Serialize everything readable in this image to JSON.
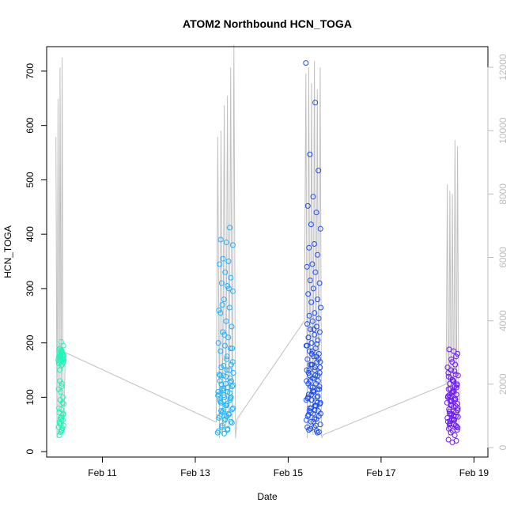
{
  "chart_data": {
    "type": "scatter",
    "title": "ATOM2 Northbound HCN_TOGA",
    "xlabel": "Date",
    "ylabel": "HCN_TOGA",
    "x_ticks": [
      "Feb 11",
      "Feb 13",
      "Feb 15",
      "Feb 17",
      "Feb 19"
    ],
    "x_tick_days": [
      11,
      13,
      15,
      17,
      19
    ],
    "xlim_days": [
      9.8,
      19.3
    ],
    "y_ticks": [
      0,
      100,
      200,
      300,
      400,
      500,
      600,
      700
    ],
    "ylim": [
      -10,
      745
    ],
    "y2_ticks": [
      0,
      2000,
      4000,
      6000,
      8000,
      10000,
      12000
    ],
    "y2lim": [
      -300,
      12650
    ],
    "grid": false,
    "legend": "none",
    "colors": {
      "flight1": "#1ff5b6",
      "flight2": "#1ab3ff",
      "flight3": "#1d4df2",
      "flight4": "#6e19f2",
      "altitude": "#c0c0c0",
      "axis": "#000000",
      "axis2": "#bdbdbd"
    },
    "series": [
      {
        "flight": "flight1",
        "x_range_days": [
          10.05,
          10.18
        ],
        "values": [
          168,
          172,
          175,
          178,
          180,
          165,
          160,
          170,
          176,
          183,
          179,
          171,
          166,
          174,
          185,
          190,
          195,
          202,
          188,
          181,
          177,
          169,
          158,
          150,
          173,
          178,
          162,
          181,
          176,
          170,
          65,
          72,
          58,
          50,
          45,
          40,
          55,
          68,
          78,
          80,
          90,
          62,
          48,
          38,
          30,
          100,
          110,
          115,
          125,
          95,
          70,
          60,
          52,
          43,
          36,
          88,
          120,
          130,
          164,
          186
        ]
      },
      {
        "flight": "flight2",
        "x_range_days": [
          13.48,
          13.85
        ],
        "values": [
          35,
          40,
          45,
          55,
          60,
          65,
          70,
          75,
          80,
          85,
          90,
          95,
          100,
          105,
          110,
          115,
          120,
          125,
          130,
          135,
          140,
          145,
          150,
          155,
          160,
          58,
          62,
          68,
          72,
          78,
          88,
          92,
          98,
          104,
          110,
          118,
          124,
          130,
          138,
          142,
          150,
          158,
          165,
          175,
          185,
          190,
          195,
          200,
          210,
          220,
          230,
          240,
          255,
          265,
          280,
          295,
          305,
          310,
          320,
          330,
          345,
          350,
          355,
          380,
          385,
          390,
          412,
          33,
          38,
          42,
          48,
          53,
          85,
          95,
          108,
          112,
          122,
          65,
          75,
          100,
          215,
          260,
          300,
          270,
          190,
          170,
          140,
          128,
          116,
          103
        ]
      },
      {
        "flight": "flight3",
        "x_range_days": [
          15.38,
          15.73
        ],
        "values": [
          715,
          642,
          547,
          517,
          469,
          452,
          440,
          418,
          410,
          382,
          375,
          362,
          345,
          340,
          330,
          315,
          310,
          300,
          290,
          280,
          275,
          265,
          255,
          250,
          245,
          240,
          235,
          230,
          225,
          220,
          215,
          210,
          205,
          200,
          195,
          190,
          185,
          180,
          175,
          170,
          165,
          160,
          155,
          150,
          145,
          140,
          135,
          130,
          125,
          120,
          115,
          110,
          105,
          100,
          95,
          90,
          85,
          80,
          75,
          70,
          65,
          60,
          55,
          50,
          45,
          40,
          35,
          160,
          150,
          140,
          130,
          120,
          110,
          100,
          90,
          80,
          70,
          60,
          150,
          170,
          185,
          195,
          175,
          160,
          145,
          135,
          125,
          115,
          105,
          95,
          85,
          75,
          65,
          55,
          45,
          38,
          95,
          88,
          76,
          68,
          102,
          118,
          58,
          48,
          42,
          36,
          225,
          210,
          198,
          180,
          165,
          155,
          140,
          130,
          112,
          98,
          84,
          72
        ]
      },
      {
        "flight": "flight4",
        "x_range_days": [
          18.42,
          18.68
        ],
        "values": [
          90,
          95,
          100,
          105,
          110,
          115,
          120,
          85,
          80,
          75,
          70,
          65,
          60,
          55,
          50,
          45,
          40,
          38,
          42,
          48,
          150,
          140,
          130,
          125,
          118,
          108,
          102,
          98,
          92,
          88,
          82,
          78,
          72,
          68,
          62,
          58,
          52,
          46,
          130,
          145,
          160,
          170,
          180,
          185,
          188,
          175,
          165,
          155,
          148,
          135,
          122,
          112,
          104,
          96,
          86,
          76,
          66,
          56,
          20,
          17,
          22,
          30,
          35,
          44,
          60,
          74,
          84,
          94,
          100,
          110,
          116,
          124,
          132,
          138,
          142,
          70,
          64,
          58,
          50
        ]
      }
    ],
    "secondary_series": {
      "name": "altitude",
      "segments": [
        {
          "x_range_days": [
            10.0,
            10.2
          ],
          "values": [
            9800,
            300,
            11000,
            400,
            12000,
            500,
            12300,
            600,
            1200,
            3000
          ]
        },
        {
          "x_range_days": [
            13.45,
            13.9
          ],
          "values": [
            800,
            9800,
            300,
            10000,
            400,
            10800,
            500,
            11100,
            600,
            12000,
            700,
            12700,
            300,
            900
          ]
        },
        {
          "x_range_days": [
            15.35,
            15.75
          ],
          "values": [
            4000,
            11800,
            300,
            12000,
            500,
            11500,
            400,
            12200,
            600,
            11300,
            700,
            12000,
            300,
            400
          ]
        },
        {
          "x_range_days": [
            18.4,
            18.7
          ],
          "values": [
            2000,
            8300,
            300,
            8100,
            400,
            8000,
            500,
            9700,
            600,
            9500,
            700,
            1800
          ]
        }
      ],
      "connectors": [
        {
          "from": [
            10.2,
            3000
          ],
          "to": [
            13.45,
            800
          ]
        },
        {
          "from": [
            13.9,
            900
          ],
          "to": [
            15.35,
            4000
          ]
        },
        {
          "from": [
            15.75,
            400
          ],
          "to": [
            18.4,
            2000
          ]
        }
      ]
    }
  }
}
